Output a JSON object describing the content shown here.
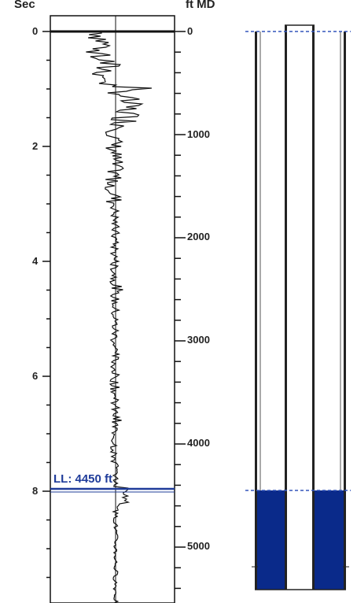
{
  "left_axis": {
    "unit_label": "Sec",
    "ticks": [
      "0",
      "2",
      "4",
      "6",
      "8"
    ]
  },
  "right_axis": {
    "unit_label": "ft MD",
    "ticks": [
      "0",
      "1000",
      "2000",
      "3000",
      "4000",
      "5000"
    ]
  },
  "liquid_level": {
    "label": "LL: 4450 ft",
    "depth_ft": 4450
  },
  "colors": {
    "trace": "#111111",
    "liquid_level_line": "#3355bb",
    "fluid_fill": "#0a2a8a",
    "text": "#222222"
  }
}
